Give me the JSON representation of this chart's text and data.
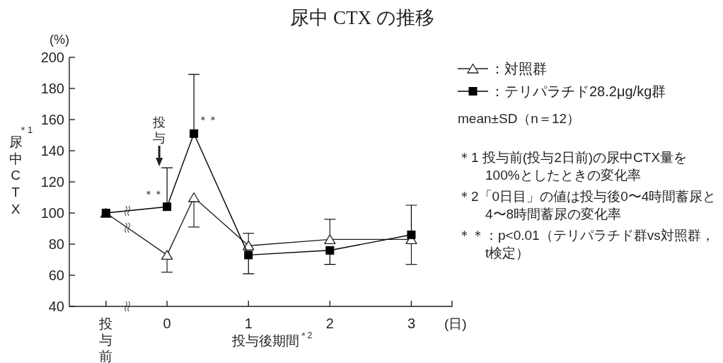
{
  "chart_data": {
    "type": "line",
    "title": "尿中 CTX の推移",
    "xlabel": "投与後期間$^{＊2}$",
    "ylabel": "尿中CTX",
    "x": [
      -0.75,
      0,
      0.33,
      1,
      2,
      3
    ],
    "series": [
      {
        "name": "：対照群",
        "color": "#231f20",
        "marker": "triangle",
        "values": [
          100,
          73,
          110,
          79,
          83,
          83
        ],
        "errors": [
          null,
          [
            62,
            73
          ],
          [
            91,
            110
          ],
          [
            79,
            87
          ],
          [
            83,
            96
          ],
          [
            67,
            83
          ]
        ]
      },
      {
        "name": "：テリパラチド28.2μg/kg群",
        "color": "#000000",
        "marker": "square",
        "values": [
          100,
          104,
          151,
          73,
          76,
          86
        ],
        "errors": [
          null,
          [
            104,
            129
          ],
          [
            151,
            189
          ],
          [
            61,
            73
          ],
          [
            67,
            76
          ],
          [
            86,
            105
          ]
        ]
      }
    ],
    "xlim": [
      -1.2,
      3.5
    ],
    "xticks": [
      {
        "value": -0.75,
        "label": "投与前"
      },
      0,
      1,
      2,
      3
    ],
    "ylim": [
      40,
      200
    ],
    "yticks": [
      40,
      60,
      80,
      100,
      120,
      140,
      160,
      180,
      200
    ],
    "legend": "top right",
    "line_style": "solid",
    "annotations": [
      "(%)",
      "(日)",
      "＊1",
      "投与",
      "＊＊",
      "＊＊",
      "mean±SD（n＝12）",
      "＊1 投与前(投与2日前)の尿中CTX量を100%としたときの変化率",
      "＊2「0日目」の値は投与後0〜4時間蓄尿と4〜8時間蓄尿の変化率",
      "＊＊：p<0.01（テリパラチド群vs対照群，t検定）"
    ]
  }
}
